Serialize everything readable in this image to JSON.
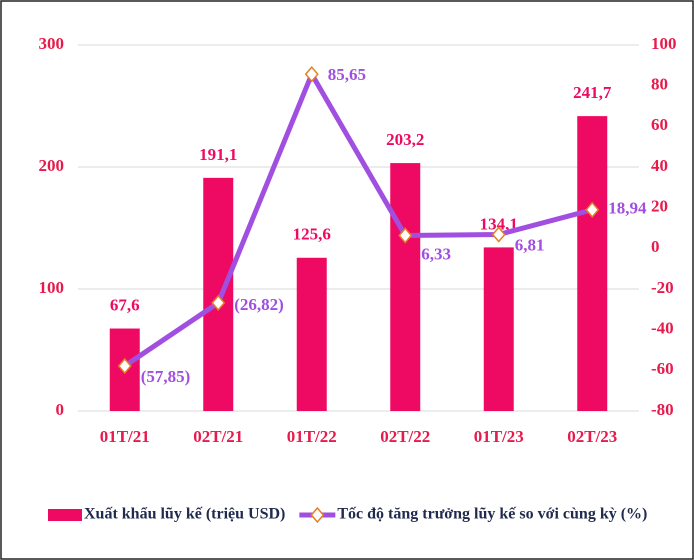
{
  "chart_data": {
    "type": "bar-line",
    "categories": [
      "01T/21",
      "02T/21",
      "01T/22",
      "02T/22",
      "01T/23",
      "02T/23"
    ],
    "series": [
      {
        "name": "Xuất khẩu lũy kế (triệu USD)",
        "type": "bar",
        "color": "#ee0a62",
        "values": [
          67.6,
          191.1,
          125.6,
          203.2,
          134.1,
          241.7
        ],
        "value_labels": [
          "67,6",
          "191,1",
          "125,6",
          "203,2",
          "134,1",
          "241,7"
        ]
      },
      {
        "name": "Tốc độ tăng trưởng lũy kế so với cùng kỳ (%)",
        "type": "line",
        "axis": "y2",
        "color": "#a04fe0",
        "values": [
          -57.85,
          -26.82,
          85.65,
          6.33,
          6.81,
          18.94
        ],
        "value_labels": [
          "(57,85)",
          "(26,82)",
          "85,65",
          "6,33",
          "6,81",
          "18,94"
        ]
      }
    ],
    "ylim": [
      0,
      300
    ],
    "yticks": [
      0,
      100,
      200,
      300
    ],
    "y2lim": [
      -80,
      100
    ],
    "y2ticks": [
      -80,
      -60,
      -40,
      -20,
      0,
      20,
      40,
      60,
      80,
      100
    ],
    "grid": true,
    "legend": "bottom"
  }
}
